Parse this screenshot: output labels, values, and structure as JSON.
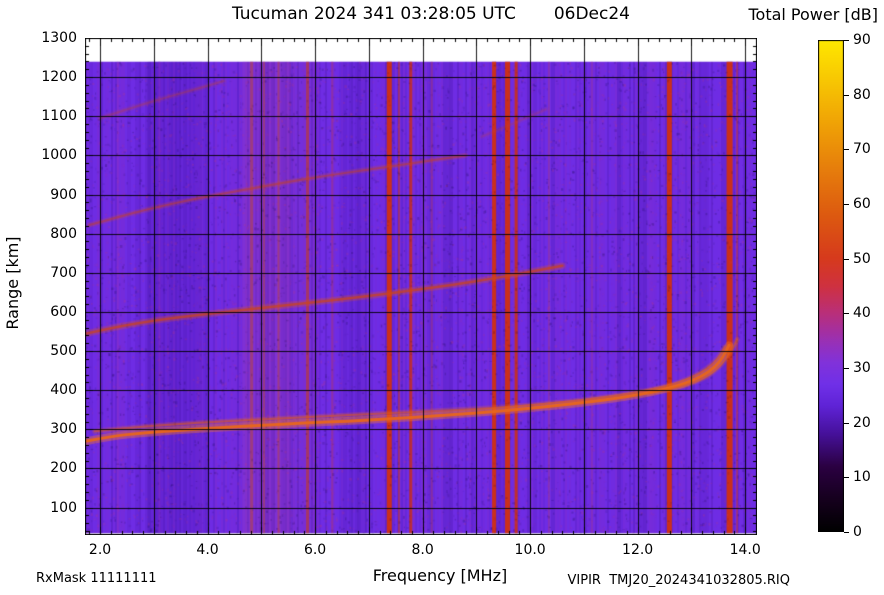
{
  "title": {
    "main": "Tucuman 2024 341 03:28:05 UTC",
    "date": "06Dec24"
  },
  "colorbar": {
    "title": "Total Power [dB]",
    "ticks": [
      0,
      10,
      20,
      30,
      40,
      50,
      60,
      70,
      80,
      90
    ],
    "min": 0,
    "max": 90
  },
  "axes": {
    "x_label": "Frequency [MHz]",
    "y_label": "Range [km]",
    "x_ticks": [
      {
        "v": 2,
        "label": "2.0"
      },
      {
        "v": 4,
        "label": "4.0"
      },
      {
        "v": 6,
        "label": "6.0"
      },
      {
        "v": 8,
        "label": "8.0"
      },
      {
        "v": 10,
        "label": "10.0"
      },
      {
        "v": 12,
        "label": "12.0"
      },
      {
        "v": 14,
        "label": "14.0"
      }
    ],
    "y_ticks": [
      {
        "v": 100,
        "label": "100"
      },
      {
        "v": 200,
        "label": "200"
      },
      {
        "v": 300,
        "label": "300"
      },
      {
        "v": 400,
        "label": "400"
      },
      {
        "v": 500,
        "label": "500"
      },
      {
        "v": 600,
        "label": "600"
      },
      {
        "v": 700,
        "label": "700"
      },
      {
        "v": 800,
        "label": "800"
      },
      {
        "v": 900,
        "label": "900"
      },
      {
        "v": 1000,
        "label": "1000"
      },
      {
        "v": 1100,
        "label": "1100"
      },
      {
        "v": 1200,
        "label": "1200"
      },
      {
        "v": 1300,
        "label": "1300"
      }
    ]
  },
  "footer": {
    "rx_mask": "RxMask 11111111",
    "file": "VIPIR  TMJ20_2024341032805.RIQ"
  },
  "chart_data": {
    "type": "heatmap",
    "title": "Tucuman 2024 341 03:28:05 UTC 06Dec24",
    "xlabel": "Frequency [MHz]",
    "ylabel": "Range [km]",
    "zlabel": "Total Power [dB]",
    "freq_range": [
      1.72,
      14.22
    ],
    "range_km": [
      30,
      1300
    ],
    "data_top_km": 1240,
    "data_bottom_km": 34,
    "zlim": [
      0,
      90
    ],
    "background_power_db": 22,
    "grid": {
      "x_step_mhz": 1,
      "y_step_km": 100
    },
    "colors": {
      "background": "#6e2be4",
      "grid": "rgba(0,0,0,0.9)",
      "frame": "#000000"
    },
    "colormap": [
      [
        0,
        "#000000"
      ],
      [
        6,
        "#16001e"
      ],
      [
        12,
        "#2b0142"
      ],
      [
        18,
        "#46119b"
      ],
      [
        23,
        "#5f23d6"
      ],
      [
        27,
        "#7030e8"
      ],
      [
        31,
        "#8132da"
      ],
      [
        35,
        "#9a30b4"
      ],
      [
        40,
        "#b92f7a"
      ],
      [
        45,
        "#cf3140"
      ],
      [
        50,
        "#d63a1d"
      ],
      [
        58,
        "#dd5a10"
      ],
      [
        66,
        "#e67c0c"
      ],
      [
        74,
        "#ef9f06"
      ],
      [
        82,
        "#f7c403"
      ],
      [
        90,
        "#ffe800"
      ]
    ],
    "bands": [
      {
        "f0": 2.9,
        "f1": 3.9,
        "c": "#4a16b8",
        "a": 0.28
      },
      {
        "f0": 4.65,
        "f1": 5.55,
        "c": "#c04890",
        "a": 0.18
      },
      {
        "f0": 5.55,
        "f1": 6.0,
        "c": "#b04090",
        "a": 0.1
      },
      {
        "f0": 6.45,
        "f1": 6.95,
        "c": "#4a16b8",
        "a": 0.16
      }
    ],
    "rfi_lines": [
      {
        "f": 2.33,
        "w": 2,
        "c": "#9a30b4",
        "a": 0.4
      },
      {
        "f": 3.1,
        "w": 2,
        "c": "#8a2bc0",
        "a": 0.4
      },
      {
        "f": 4.82,
        "w": 3,
        "c": "#c24a20",
        "a": 0.45
      },
      {
        "f": 5.05,
        "w": 2,
        "c": "#c24a20",
        "a": 0.4
      },
      {
        "f": 5.32,
        "w": 2,
        "c": "#c24a20",
        "a": 0.4
      },
      {
        "f": 5.86,
        "w": 3,
        "c": "#c8401c",
        "a": 0.6
      },
      {
        "f": 6.32,
        "w": 2,
        "c": "#b83a50",
        "a": 0.35
      },
      {
        "f": 7.38,
        "w": 5,
        "c": "#d03010",
        "a": 0.95
      },
      {
        "f": 7.56,
        "w": 2,
        "c": "#cc3a14",
        "a": 0.5
      },
      {
        "f": 7.78,
        "w": 3,
        "c": "#d03010",
        "a": 0.8
      },
      {
        "f": 8.17,
        "w": 2,
        "c": "#c03a40",
        "a": 0.35
      },
      {
        "f": 9.33,
        "w": 4,
        "c": "#d03010",
        "a": 0.95
      },
      {
        "f": 9.58,
        "w": 5,
        "c": "#d03010",
        "a": 0.95
      },
      {
        "f": 9.74,
        "w": 3,
        "c": "#d03010",
        "a": 0.85
      },
      {
        "f": 10.35,
        "w": 2,
        "c": "#b83a60",
        "a": 0.3
      },
      {
        "f": 11.15,
        "w": 2,
        "c": "#b03a70",
        "a": 0.25
      },
      {
        "f": 12.59,
        "w": 5,
        "c": "#d03010",
        "a": 0.95
      },
      {
        "f": 13.71,
        "w": 6,
        "c": "#d03010",
        "a": 0.95
      },
      {
        "f": 13.85,
        "w": 2,
        "c": "#cc3a20",
        "a": 0.5
      }
    ],
    "traces": [
      {
        "name": "F-trace-1-hop",
        "color": "#e8661a",
        "glow": "#ff7f1e",
        "width": 3,
        "alpha": 0.95,
        "points": [
          [
            1.75,
            270
          ],
          [
            2.2,
            282
          ],
          [
            2.8,
            291
          ],
          [
            3.5,
            298
          ],
          [
            4.2,
            304
          ],
          [
            5.0,
            310
          ],
          [
            5.8,
            316
          ],
          [
            6.6,
            321
          ],
          [
            7.4,
            327
          ],
          [
            8.2,
            334
          ],
          [
            9.0,
            342
          ],
          [
            9.8,
            351
          ],
          [
            10.6,
            362
          ],
          [
            11.4,
            375
          ],
          [
            12.0,
            388
          ],
          [
            12.5,
            402
          ],
          [
            12.9,
            418
          ],
          [
            13.2,
            436
          ],
          [
            13.45,
            460
          ],
          [
            13.6,
            487
          ],
          [
            13.7,
            515
          ]
        ]
      },
      {
        "name": "F-trace-1-hop-upper-strand",
        "color": "#dd5a18",
        "glow": "#f07020",
        "width": 2,
        "alpha": 0.55,
        "points": [
          [
            1.9,
            295
          ],
          [
            3.0,
            310
          ],
          [
            4.5,
            322
          ],
          [
            6.0,
            332
          ],
          [
            7.5,
            342
          ],
          [
            9.0,
            352
          ],
          [
            10.2,
            364
          ],
          [
            11.2,
            378
          ],
          [
            12.0,
            394
          ],
          [
            12.6,
            412
          ],
          [
            13.0,
            432
          ],
          [
            13.3,
            455
          ],
          [
            13.5,
            482
          ],
          [
            13.62,
            510
          ]
        ]
      },
      {
        "name": "F-trace-cusp-x-mode",
        "color": "#e06018",
        "glow": "#f07020",
        "width": 2,
        "alpha": 0.55,
        "points": [
          [
            12.2,
            392
          ],
          [
            12.8,
            408
          ],
          [
            13.25,
            430
          ],
          [
            13.55,
            462
          ],
          [
            13.75,
            500
          ],
          [
            13.85,
            530
          ]
        ]
      },
      {
        "name": "F-trace-2-hop",
        "color": "#cc4418",
        "glow": "#e05a20",
        "width": 2.5,
        "alpha": 0.7,
        "points": [
          [
            1.75,
            545
          ],
          [
            2.3,
            562
          ],
          [
            3.0,
            578
          ],
          [
            3.8,
            592
          ],
          [
            4.6,
            604
          ],
          [
            5.4,
            616
          ],
          [
            6.2,
            628
          ],
          [
            7.0,
            641
          ],
          [
            7.8,
            655
          ],
          [
            8.6,
            670
          ],
          [
            9.2,
            683
          ],
          [
            9.7,
            695
          ],
          [
            10.2,
            708
          ],
          [
            10.6,
            718
          ]
        ]
      },
      {
        "name": "F-trace-3-hop",
        "color": "#c44022",
        "glow": "#d85528",
        "width": 2,
        "alpha": 0.5,
        "points": [
          [
            1.8,
            822
          ],
          [
            2.4,
            845
          ],
          [
            3.0,
            866
          ],
          [
            3.8,
            890
          ],
          [
            4.6,
            910
          ],
          [
            5.4,
            930
          ],
          [
            6.2,
            948
          ],
          [
            7.0,
            964
          ],
          [
            7.6,
            976
          ],
          [
            8.2,
            988
          ],
          [
            8.8,
            1000
          ]
        ]
      },
      {
        "name": "F-trace-4-hop",
        "color": "#bf4030",
        "glow": "#cc5040",
        "width": 2,
        "alpha": 0.32,
        "points": [
          [
            2.0,
            1095
          ],
          [
            2.6,
            1122
          ],
          [
            3.2,
            1147
          ],
          [
            3.8,
            1170
          ],
          [
            4.3,
            1190
          ]
        ]
      },
      {
        "name": "F-trace-3-hop-high",
        "color": "#c04030",
        "glow": "#cc5040",
        "width": 2,
        "alpha": 0.22,
        "points": [
          [
            9.1,
            1048
          ],
          [
            9.7,
            1082
          ],
          [
            10.3,
            1118
          ]
        ]
      }
    ]
  }
}
